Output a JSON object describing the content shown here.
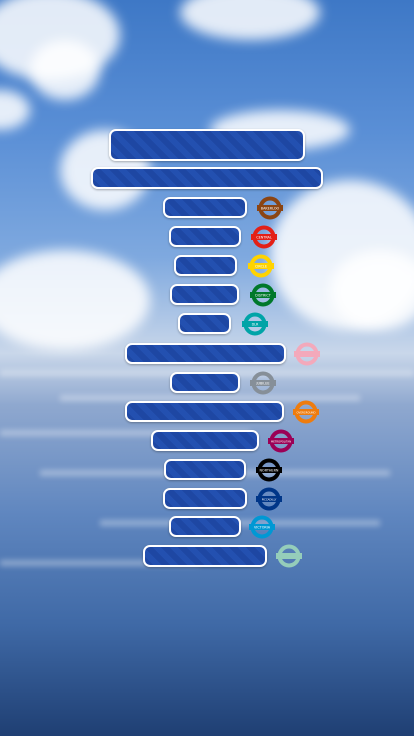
{
  "title_bars": [
    {
      "id": "header-bar-top",
      "label": ""
    },
    {
      "id": "header-bar-sub",
      "label": ""
    }
  ],
  "lines": [
    {
      "id": "bakerloo",
      "label": "",
      "roundel_text": "BAKERLOO",
      "color": "#8b4513"
    },
    {
      "id": "central",
      "label": "",
      "roundel_text": "CENTRAL",
      "color": "#e32017"
    },
    {
      "id": "circle",
      "label": "",
      "roundel_text": "CIRCLE",
      "color": "#ffd300"
    },
    {
      "id": "district",
      "label": "",
      "roundel_text": "DISTRICT",
      "color": "#00782a"
    },
    {
      "id": "dlr",
      "label": "",
      "roundel_text": "DLR",
      "color": "#00a4a7"
    },
    {
      "id": "hammersmith",
      "label": "",
      "roundel_text": "",
      "color": "#f3a9bb"
    },
    {
      "id": "jubilee",
      "label": "",
      "roundel_text": "JUBILEE",
      "color": "#868f98"
    },
    {
      "id": "overground",
      "label": "",
      "roundel_text": "OVERGROUND",
      "color": "#ee7c0e"
    },
    {
      "id": "metropolitan",
      "label": "",
      "roundel_text": "METROPOLITAN",
      "color": "#9b0056"
    },
    {
      "id": "northern",
      "label": "",
      "roundel_text": "NORTHERN",
      "color": "#000000"
    },
    {
      "id": "piccadilly",
      "label": "",
      "roundel_text": "PICCADILLY",
      "color": "#003688"
    },
    {
      "id": "victoria",
      "label": "",
      "roundel_text": "VICTORIA",
      "color": "#0098d4"
    },
    {
      "id": "waterloo",
      "label": "",
      "roundel_text": "",
      "color": "#95cdba"
    }
  ]
}
